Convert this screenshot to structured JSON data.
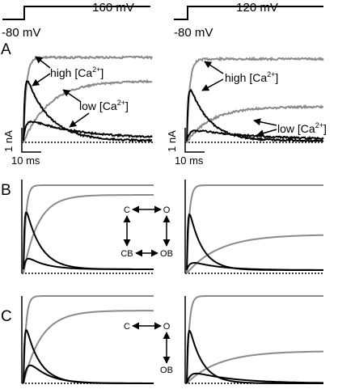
{
  "colors": {
    "black_trace": "#000000",
    "gray_trace": "#8a8a8a",
    "background": "#ffffff"
  },
  "protocol": {
    "left": {
      "step_label": "160 mV",
      "hold_label": "-80 mV"
    },
    "right": {
      "step_label": "120 mV",
      "hold_label": "-80 mV"
    }
  },
  "panels": {
    "a": {
      "label": "A",
      "high_label_left": "high [Ca",
      "low_label_left": "low [Ca",
      "high_label_right": "high [Ca",
      "low_label_right": "low [Ca",
      "sup": "2+",
      "close_bracket": "]",
      "scale_current_left": "1 nA",
      "scale_time_left": "10 ms",
      "scale_current_right": "1 nA",
      "scale_time_right": "10 ms"
    },
    "b": {
      "label": "B",
      "scheme": {
        "c": "C",
        "o": "O",
        "cb": "CB",
        "ob": "OB"
      }
    },
    "c": {
      "label": "C",
      "scheme": {
        "c": "C",
        "o": "O",
        "ob": "OB"
      }
    }
  }
}
